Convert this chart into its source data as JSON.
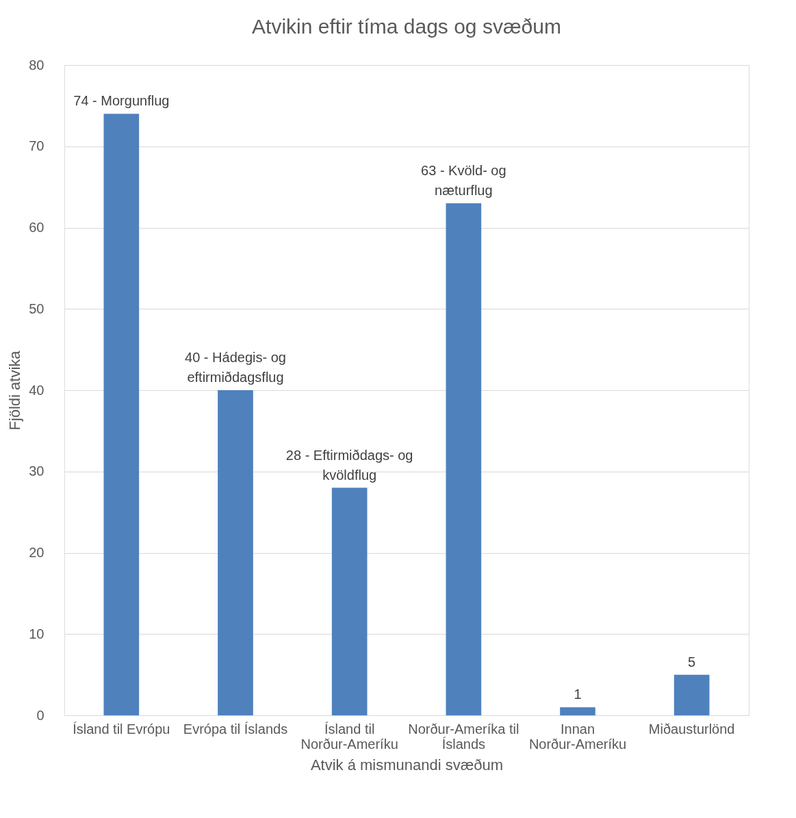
{
  "chart_data": {
    "type": "bar",
    "title": "Atvikin eftir tíma dags og svæðum",
    "xlabel": "Atvik á mismunandi svæðum",
    "ylabel": "Fjöldi atvika",
    "categories": [
      "Ísland til Evrópu",
      "Evrópa til Íslands",
      "Ísland til Norður-Ameríku",
      "Norður-Ameríka til Íslands",
      "Innan Norður-Ameríku",
      "Miðausturlönd"
    ],
    "values": [
      74,
      40,
      28,
      63,
      1,
      5
    ],
    "value_labels": [
      "74 - Morgunflug",
      "40 - Hádegis- og eftirmiðdagsflug",
      "28 - Eftirmiðdags- og kvöldflug",
      "63 - Kvöld- og næturflug",
      "1",
      "5"
    ],
    "color": "#4f81bd",
    "ylim": [
      0,
      80
    ],
    "yticks": [
      0,
      10,
      20,
      30,
      40,
      50,
      60,
      70,
      80
    ],
    "grid": "y"
  }
}
